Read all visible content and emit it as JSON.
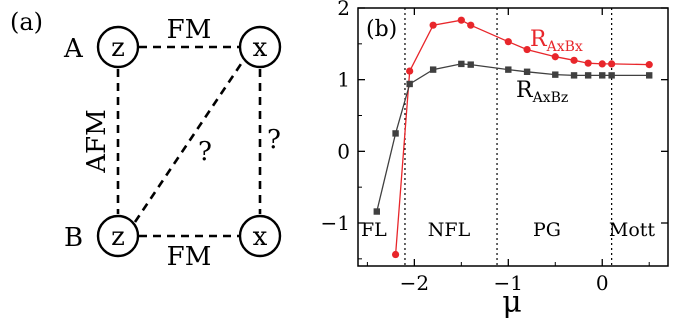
{
  "panel_a": {
    "label": "(a)",
    "site_labels": {
      "A": "A",
      "B": "B"
    },
    "nodes": [
      {
        "id": "A-left",
        "letter": "z"
      },
      {
        "id": "A-right",
        "letter": "x"
      },
      {
        "id": "B-left",
        "letter": "z"
      },
      {
        "id": "B-right",
        "letter": "x"
      }
    ],
    "edge_labels": {
      "top": "FM",
      "bottom": "FM",
      "left": "AFM",
      "diagonal": "?",
      "right": "?"
    }
  },
  "panel_b": {
    "label": "(b)",
    "xlabel": "μ",
    "region_labels": [
      "FL",
      "NFL",
      "PG",
      "Mott"
    ],
    "region_boundaries": [
      -2.1,
      -1.12,
      0.1
    ],
    "series_label_red": {
      "main": "R",
      "sub": "AxBx"
    },
    "series_label_black": {
      "main": "R",
      "sub": "AxBz"
    },
    "colors": {
      "red": "#e8262b",
      "black": "#404040"
    }
  },
  "chart_data": {
    "type": "line",
    "xlim": [
      -2.6,
      0.7
    ],
    "ylim": [
      -1.6,
      2
    ],
    "xticks": [
      -2,
      -1,
      0
    ],
    "xtick_labels": [
      "−2",
      "−1",
      "0"
    ],
    "yticks": [
      -1,
      0,
      1,
      2
    ],
    "ytick_labels": [
      "−1",
      "0",
      "1",
      "2"
    ],
    "xlabel": "μ",
    "series": [
      {
        "name": "R_AxBx",
        "color": "#e8262b",
        "marker": "circle",
        "x": [
          -2.2,
          -2.05,
          -1.8,
          -1.5,
          -1.4,
          -1.0,
          -0.8,
          -0.5,
          -0.3,
          -0.15,
          0.0,
          0.1,
          0.5
        ],
        "y": [
          -1.44,
          1.12,
          1.76,
          1.83,
          1.76,
          1.53,
          1.42,
          1.32,
          1.27,
          1.23,
          1.22,
          1.22,
          1.21
        ]
      },
      {
        "name": "R_AxBz",
        "color": "#404040",
        "marker": "square",
        "x": [
          -2.4,
          -2.2,
          -2.05,
          -1.8,
          -1.5,
          -1.4,
          -1.0,
          -0.8,
          -0.5,
          -0.3,
          -0.15,
          0.0,
          0.1,
          0.5
        ],
        "y": [
          -0.84,
          0.25,
          0.94,
          1.14,
          1.22,
          1.21,
          1.14,
          1.11,
          1.07,
          1.06,
          1.06,
          1.06,
          1.06,
          1.06
        ]
      }
    ]
  }
}
